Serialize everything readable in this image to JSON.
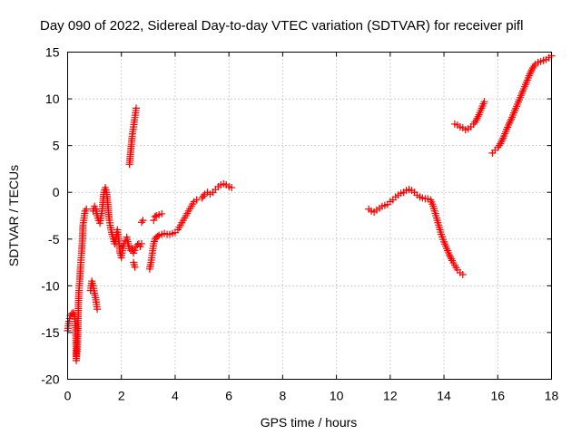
{
  "chart_data": {
    "type": "scatter",
    "title": "Day 090 of 2022, Sidereal Day-to-day VTEC variation (SDTVAR) for receiver pifl",
    "xlabel": "GPS time / hours",
    "ylabel": "SDTVAR / TECUs",
    "xlim": [
      0,
      18
    ],
    "ylim": [
      -20,
      15
    ],
    "xticks": [
      0,
      2,
      4,
      6,
      8,
      10,
      12,
      14,
      16,
      18
    ],
    "yticks": [
      -20,
      -15,
      -10,
      -5,
      0,
      5,
      10,
      15
    ],
    "grid": true,
    "marker": "+",
    "color": "#ff0000",
    "segments": [
      [
        [
          0.0,
          -14.8
        ],
        [
          0.05,
          -13.8
        ],
        [
          0.1,
          -13.2
        ],
        [
          0.15,
          -13.0
        ],
        [
          0.2,
          -12.9
        ],
        [
          0.25,
          -13.1
        ],
        [
          0.3,
          -14.5
        ],
        [
          0.32,
          -18.0
        ],
        [
          0.35,
          -17.0
        ],
        [
          0.38,
          -15.0
        ],
        [
          0.4,
          -12.0
        ],
        [
          0.42,
          -10.5
        ],
        [
          0.45,
          -9.5
        ],
        [
          0.48,
          -8.0
        ],
        [
          0.5,
          -7.0
        ],
        [
          0.52,
          -6.5
        ],
        [
          0.55,
          -5.0
        ],
        [
          0.57,
          -3.5
        ],
        [
          0.6,
          -3.0
        ],
        [
          0.62,
          -2.5
        ],
        [
          0.65,
          -2.0
        ],
        [
          0.7,
          -1.8
        ]
      ],
      [
        [
          0.85,
          -10.5
        ],
        [
          0.9,
          -9.5
        ],
        [
          0.95,
          -10.0
        ],
        [
          1.0,
          -10.8
        ],
        [
          1.05,
          -11.5
        ],
        [
          1.1,
          -12.5
        ]
      ],
      [
        [
          0.95,
          -2.0
        ],
        [
          1.0,
          -1.5
        ],
        [
          1.05,
          -1.8
        ],
        [
          1.1,
          -2.5
        ],
        [
          1.15,
          -3.0
        ],
        [
          1.2,
          -3.3
        ],
        [
          1.25,
          -2.5
        ],
        [
          1.3,
          -1.5
        ],
        [
          1.35,
          0.0
        ],
        [
          1.4,
          0.5
        ],
        [
          1.45,
          0.0
        ],
        [
          1.5,
          -1.5
        ],
        [
          1.55,
          -3.0
        ],
        [
          1.6,
          -3.8
        ],
        [
          1.65,
          -4.5
        ],
        [
          1.7,
          -5.0
        ],
        [
          1.75,
          -5.5
        ],
        [
          1.8,
          -4.8
        ],
        [
          1.85,
          -4.0
        ],
        [
          1.9,
          -5.0
        ],
        [
          1.95,
          -6.5
        ],
        [
          2.0,
          -7.0
        ],
        [
          2.05,
          -6.0
        ],
        [
          2.1,
          -5.5
        ],
        [
          2.15,
          -5.2
        ],
        [
          2.2,
          -4.8
        ],
        [
          2.25,
          -5.5
        ],
        [
          2.3,
          -6.0
        ],
        [
          2.35,
          -6.2
        ],
        [
          2.4,
          -6.0
        ],
        [
          2.45,
          -6.5
        ],
        [
          2.5,
          -6.2
        ],
        [
          2.55,
          -5.8
        ],
        [
          2.6,
          -5.6
        ],
        [
          2.65,
          -5.5
        ],
        [
          2.7,
          -5.8
        ],
        [
          2.75,
          -5.5
        ]
      ],
      [
        [
          2.3,
          3.0
        ],
        [
          2.35,
          4.5
        ],
        [
          2.4,
          6.0
        ],
        [
          2.45,
          7.0
        ],
        [
          2.5,
          8.0
        ],
        [
          2.55,
          9.0
        ]
      ],
      [
        [
          2.45,
          -7.5
        ],
        [
          2.5,
          -8.0
        ]
      ],
      [
        [
          2.75,
          -3.2
        ],
        [
          2.8,
          -3.0
        ]
      ],
      [
        [
          3.05,
          -8.2
        ],
        [
          3.1,
          -7.5
        ],
        [
          3.15,
          -6.5
        ],
        [
          3.2,
          -5.5
        ],
        [
          3.25,
          -5.0
        ],
        [
          3.3,
          -4.8
        ],
        [
          3.35,
          -4.7
        ],
        [
          3.4,
          -4.6
        ],
        [
          3.5,
          -4.5
        ],
        [
          3.6,
          -4.4
        ],
        [
          3.7,
          -4.5
        ],
        [
          3.8,
          -4.5
        ],
        [
          3.9,
          -4.4
        ],
        [
          4.0,
          -4.3
        ],
        [
          4.1,
          -4.0
        ],
        [
          4.2,
          -3.5
        ],
        [
          4.3,
          -3.0
        ],
        [
          4.4,
          -2.5
        ],
        [
          4.5,
          -2.0
        ],
        [
          4.6,
          -1.5
        ],
        [
          4.7,
          -1.0
        ],
        [
          4.8,
          -0.8
        ]
      ],
      [
        [
          3.2,
          -3.0
        ],
        [
          3.25,
          -2.6
        ],
        [
          3.3,
          -2.5
        ],
        [
          3.4,
          -2.4
        ],
        [
          3.5,
          -2.3
        ]
      ],
      [
        [
          5.0,
          -0.6
        ],
        [
          5.1,
          -0.2
        ],
        [
          5.2,
          0.0
        ],
        [
          5.3,
          -0.2
        ],
        [
          5.4,
          0.0
        ],
        [
          5.5,
          0.3
        ],
        [
          5.6,
          0.6
        ],
        [
          5.7,
          0.8
        ],
        [
          5.8,
          0.9
        ],
        [
          5.9,
          0.8
        ],
        [
          6.0,
          0.6
        ],
        [
          6.1,
          0.5
        ]
      ],
      [
        [
          11.2,
          -1.8
        ],
        [
          11.3,
          -2.0
        ],
        [
          11.4,
          -2.1
        ],
        [
          11.5,
          -1.9
        ],
        [
          11.6,
          -1.7
        ],
        [
          11.7,
          -1.5
        ],
        [
          11.8,
          -1.4
        ],
        [
          11.9,
          -1.3
        ],
        [
          12.0,
          -1.0
        ],
        [
          12.1,
          -0.8
        ],
        [
          12.2,
          -0.5
        ],
        [
          12.3,
          -0.3
        ],
        [
          12.4,
          -0.1
        ],
        [
          12.5,
          0.0
        ],
        [
          12.6,
          0.2
        ],
        [
          12.7,
          0.3
        ],
        [
          12.8,
          0.2
        ],
        [
          12.9,
          0.0
        ],
        [
          13.0,
          -0.3
        ],
        [
          13.1,
          -0.5
        ],
        [
          13.2,
          -0.6
        ],
        [
          13.3,
          -0.7
        ],
        [
          13.4,
          -0.7
        ],
        [
          13.5,
          -0.8
        ],
        [
          13.6,
          -1.5
        ],
        [
          13.7,
          -2.5
        ],
        [
          13.8,
          -3.5
        ],
        [
          13.9,
          -4.5
        ],
        [
          14.0,
          -5.3
        ],
        [
          14.1,
          -6.0
        ],
        [
          14.2,
          -6.7
        ],
        [
          14.3,
          -7.3
        ],
        [
          14.4,
          -7.8
        ],
        [
          14.5,
          -8.3
        ],
        [
          14.6,
          -8.6
        ],
        [
          14.7,
          -8.8
        ]
      ],
      [
        [
          14.4,
          7.3
        ],
        [
          14.5,
          7.2
        ],
        [
          14.6,
          7.0
        ],
        [
          14.7,
          6.9
        ],
        [
          14.8,
          6.7
        ],
        [
          14.9,
          6.8
        ],
        [
          15.0,
          7.0
        ],
        [
          15.1,
          7.3
        ],
        [
          15.2,
          7.7
        ],
        [
          15.3,
          8.3
        ],
        [
          15.4,
          9.0
        ],
        [
          15.5,
          9.7
        ]
      ],
      [
        [
          15.8,
          4.2
        ],
        [
          15.9,
          4.5
        ],
        [
          16.0,
          4.8
        ],
        [
          16.1,
          5.2
        ],
        [
          16.2,
          5.8
        ],
        [
          16.3,
          6.5
        ],
        [
          16.4,
          7.2
        ],
        [
          16.5,
          7.8
        ],
        [
          16.6,
          8.5
        ],
        [
          16.7,
          9.2
        ],
        [
          16.8,
          9.9
        ],
        [
          16.9,
          10.6
        ],
        [
          17.0,
          11.3
        ],
        [
          17.1,
          12.0
        ],
        [
          17.2,
          12.7
        ],
        [
          17.3,
          13.3
        ],
        [
          17.4,
          13.7
        ],
        [
          17.5,
          13.9
        ],
        [
          17.6,
          14.0
        ],
        [
          17.7,
          14.1
        ],
        [
          17.8,
          14.2
        ],
        [
          17.9,
          14.4
        ],
        [
          18.0,
          14.6
        ]
      ]
    ]
  }
}
